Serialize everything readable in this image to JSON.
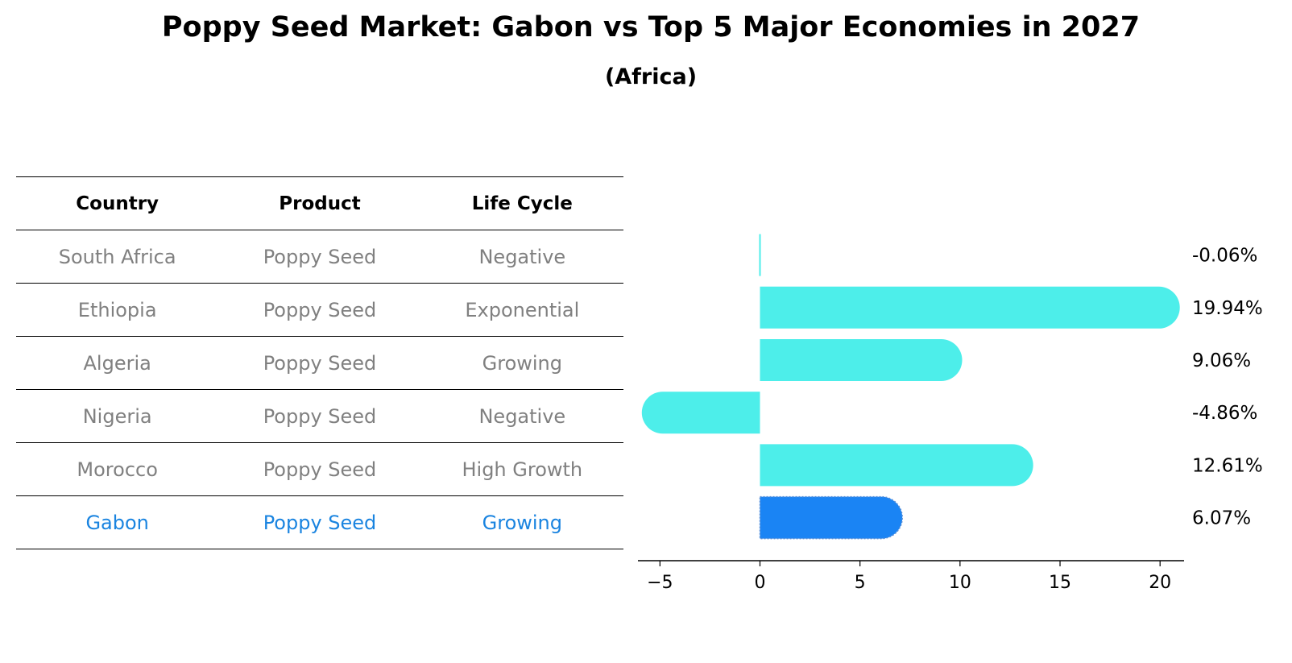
{
  "title": "Poppy Seed Market: Gabon vs Top 5 Major Economies in 2027",
  "subtitle": "(Africa)",
  "table": {
    "headers": [
      "Country",
      "Product",
      "Life Cycle"
    ],
    "rows": [
      {
        "country": "South Africa",
        "product": "Poppy Seed",
        "life_cycle": "Negative"
      },
      {
        "country": "Ethiopia",
        "product": "Poppy Seed",
        "life_cycle": "Exponential"
      },
      {
        "country": "Algeria",
        "product": "Poppy Seed",
        "life_cycle": "Growing"
      },
      {
        "country": "Nigeria",
        "product": "Poppy Seed",
        "life_cycle": "Negative"
      },
      {
        "country": "Morocco",
        "product": "Poppy Seed",
        "life_cycle": "High Growth"
      },
      {
        "country": "Gabon",
        "product": "Poppy Seed",
        "life_cycle": "Growing"
      }
    ]
  },
  "colors": {
    "bar": "#4deeea",
    "highlight": "#1a84f4",
    "highlight_text": "#1a84e0"
  },
  "chart_data": {
    "type": "bar",
    "orientation": "horizontal",
    "title": "Poppy Seed Market: Gabon vs Top 5 Major Economies in 2027",
    "subtitle": "(Africa)",
    "categories": [
      "South Africa",
      "Ethiopia",
      "Algeria",
      "Nigeria",
      "Morocco",
      "Gabon"
    ],
    "values": [
      -0.06,
      19.94,
      9.06,
      -4.86,
      12.61,
      6.07
    ],
    "value_labels": [
      "-0.06%",
      "19.94%",
      "9.06%",
      "-4.86%",
      "12.61%",
      "6.07%"
    ],
    "highlight": "Gabon",
    "xlim": [
      -6.1,
      21.2
    ],
    "xticks": [
      -5,
      0,
      5,
      10,
      15,
      20
    ],
    "xtick_labels": [
      "−5",
      "0",
      "5",
      "10",
      "15",
      "20"
    ],
    "xlabel": "",
    "ylabel": ""
  }
}
